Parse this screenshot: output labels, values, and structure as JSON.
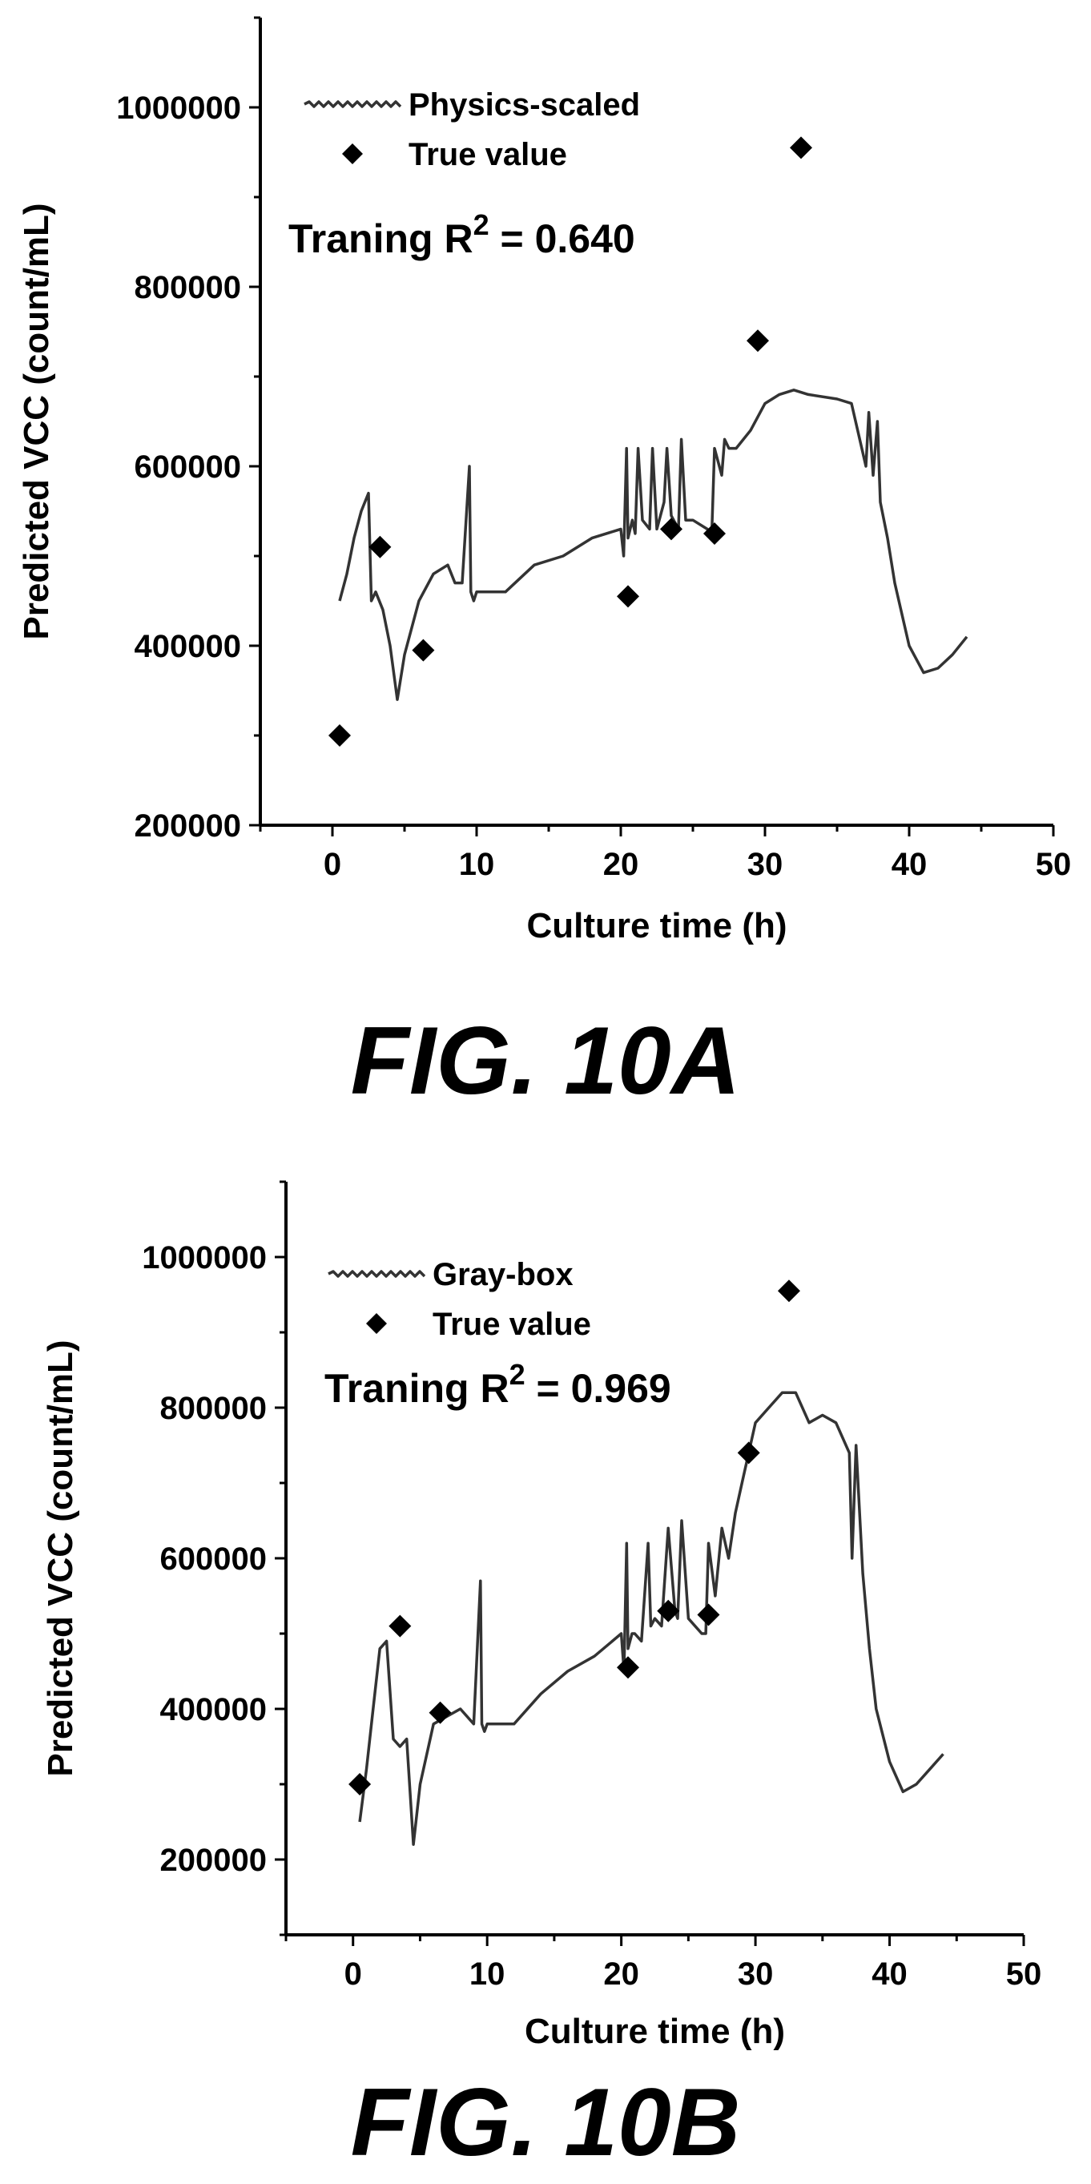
{
  "chart_data": [
    {
      "type": "scatter",
      "figure_label": "FIG. 10A",
      "xlabel": "Culture time (h)",
      "ylabel": "Predicted VCC (count/mL)",
      "xlim": [
        -5,
        50
      ],
      "ylim": [
        200000,
        1100000
      ],
      "xticks": [
        0,
        10,
        20,
        30,
        40,
        50
      ],
      "yticks": [
        200000,
        400000,
        600000,
        800000,
        1000000
      ],
      "xtick_labels": [
        "0",
        "10",
        "20",
        "30",
        "40",
        "50"
      ],
      "ytick_labels": [
        "200000",
        "400000",
        "600000",
        "800000",
        "1000000"
      ],
      "annotation": {
        "prefix": "Traning R",
        "superscript": "2",
        "suffix": " = 0.640"
      },
      "legend": {
        "placement": "top-left",
        "entries": [
          "Physics-scaled",
          "True value"
        ]
      },
      "series": [
        {
          "name": "Physics-scaled",
          "kind": "line",
          "x": [
            0.5,
            1.0,
            1.5,
            2.0,
            2.5,
            2.7,
            3.0,
            3.5,
            4.0,
            4.5,
            5.0,
            6.0,
            7.0,
            8.0,
            8.5,
            9.0,
            9.5,
            9.6,
            9.8,
            10,
            12,
            14,
            16,
            18,
            20,
            20.2,
            20.4,
            20.5,
            20.8,
            21,
            21.2,
            21.5,
            22,
            22.2,
            22.5,
            23,
            23.2,
            23.5,
            24,
            24.2,
            24.5,
            25,
            26,
            26.3,
            26.5,
            27,
            27.2,
            27.5,
            28,
            29,
            30,
            31,
            32,
            33,
            35,
            36,
            37,
            37.2,
            37.5,
            37.8,
            38,
            38.5,
            39,
            40,
            41,
            42,
            43,
            44
          ],
          "y": [
            450000,
            480000,
            520000,
            550000,
            570000,
            450000,
            460000,
            440000,
            400000,
            340000,
            390000,
            450000,
            480000,
            490000,
            470000,
            470000,
            600000,
            460000,
            450000,
            460000,
            460000,
            490000,
            500000,
            520000,
            530000,
            500000,
            620000,
            520000,
            540000,
            525000,
            620000,
            540000,
            530000,
            620000,
            530000,
            560000,
            620000,
            545000,
            530000,
            630000,
            540000,
            540000,
            530000,
            520000,
            620000,
            590000,
            630000,
            620000,
            620000,
            640000,
            670000,
            680000,
            685000,
            680000,
            675000,
            670000,
            600000,
            660000,
            590000,
            650000,
            560000,
            520000,
            470000,
            400000,
            370000,
            375000,
            390000,
            410000
          ]
        },
        {
          "name": "True value",
          "kind": "scatter",
          "x": [
            0.5,
            3.3,
            6.3,
            20.5,
            23.5,
            26.5,
            29.5,
            32.5
          ],
          "y": [
            300000,
            510000,
            395000,
            455000,
            530000,
            525000,
            740000,
            955000
          ]
        }
      ]
    },
    {
      "type": "scatter",
      "figure_label": "FIG. 10B",
      "xlabel": "Culture time (h)",
      "ylabel": "Predicted VCC (count/mL)",
      "xlim": [
        -5,
        50
      ],
      "ylim": [
        100000,
        1100000
      ],
      "xticks": [
        0,
        10,
        20,
        30,
        40,
        50
      ],
      "yticks": [
        200000,
        400000,
        600000,
        800000,
        1000000
      ],
      "xtick_labels": [
        "0",
        "10",
        "20",
        "30",
        "40",
        "50"
      ],
      "ytick_labels": [
        "200000",
        "400000",
        "600000",
        "800000",
        "1000000"
      ],
      "annotation": {
        "prefix": "Traning R",
        "superscript": "2",
        "suffix": " = 0.969"
      },
      "legend": {
        "placement": "top-left",
        "entries": [
          "Gray-box",
          "True value"
        ]
      },
      "series": [
        {
          "name": "Gray-box",
          "kind": "line",
          "x": [
            0.5,
            1.0,
            1.5,
            2.0,
            2.5,
            3.0,
            3.5,
            4.0,
            4.5,
            5.0,
            6.0,
            7.0,
            8.0,
            9.0,
            9.5,
            9.6,
            9.8,
            10,
            12,
            14,
            16,
            18,
            20,
            20.2,
            20.4,
            20.5,
            20.8,
            21,
            21.5,
            22,
            22.2,
            22.5,
            23,
            23.5,
            24,
            24.2,
            24.5,
            25,
            26,
            26.3,
            26.5,
            27,
            27.5,
            28,
            28.5,
            29,
            30,
            31,
            32,
            33,
            34,
            35,
            36,
            37,
            37.2,
            37.5,
            38,
            38.5,
            39,
            40,
            41,
            42,
            43,
            44
          ],
          "y": [
            250000,
            320000,
            400000,
            480000,
            490000,
            360000,
            350000,
            360000,
            220000,
            300000,
            380000,
            390000,
            400000,
            380000,
            570000,
            380000,
            370000,
            380000,
            380000,
            420000,
            450000,
            470000,
            500000,
            450000,
            620000,
            480000,
            500000,
            500000,
            490000,
            620000,
            510000,
            520000,
            510000,
            640000,
            530000,
            520000,
            650000,
            520000,
            500000,
            500000,
            620000,
            550000,
            640000,
            600000,
            660000,
            700000,
            780000,
            800000,
            820000,
            820000,
            780000,
            790000,
            780000,
            740000,
            600000,
            750000,
            580000,
            480000,
            400000,
            330000,
            290000,
            300000,
            320000,
            340000
          ]
        },
        {
          "name": "True value",
          "kind": "scatter",
          "x": [
            0.5,
            3.5,
            6.5,
            20.5,
            23.5,
            26.5,
            29.5,
            32.5
          ],
          "y": [
            300000,
            510000,
            395000,
            455000,
            530000,
            525000,
            740000,
            955000
          ]
        }
      ]
    }
  ]
}
